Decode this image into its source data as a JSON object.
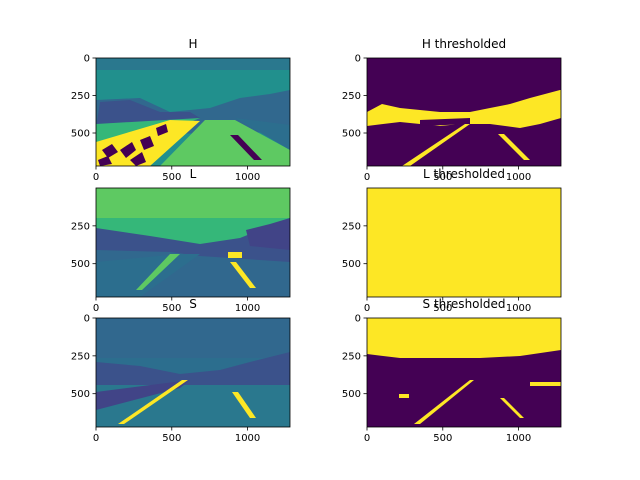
{
  "figure": {
    "colors": {
      "background": "#ffffff",
      "viridis_dark": "#440154",
      "viridis_blue": "#2c6e8e",
      "viridis_teal": "#21908d",
      "viridis_green": "#35b779",
      "viridis_light": "#5ec962",
      "viridis_yellow": "#fde725"
    }
  },
  "chart_data": [
    {
      "type": "heatmap",
      "title": "H",
      "xticks": [
        "0",
        "500",
        "1000"
      ],
      "yticks": [
        "0",
        "250",
        "500"
      ],
      "xlim": [
        0,
        1280
      ],
      "ylim": [
        720,
        0
      ],
      "image_content": "hue channel of road image"
    },
    {
      "type": "heatmap",
      "title": "H thresholded",
      "xticks": [
        "0",
        "500",
        "1000"
      ],
      "yticks": [
        "0",
        "250",
        "500"
      ],
      "xlim": [
        0,
        1280
      ],
      "ylim": [
        720,
        0
      ],
      "image_content": "binary threshold of hue channel"
    },
    {
      "type": "heatmap",
      "title": "L",
      "xticks": [
        "0",
        "500",
        "1000"
      ],
      "yticks": [
        "250",
        "500"
      ],
      "xlim": [
        0,
        1280
      ],
      "ylim": [
        720,
        0
      ],
      "image_content": "lightness channel of road image"
    },
    {
      "type": "heatmap",
      "title": "L thresholded",
      "xticks": [
        "0",
        "500",
        "1000"
      ],
      "yticks": [
        "250",
        "500"
      ],
      "xlim": [
        0,
        1280
      ],
      "ylim": [
        720,
        0
      ],
      "image_content": "binary threshold of lightness channel (all above threshold)"
    },
    {
      "type": "heatmap",
      "title": "S",
      "xticks": [
        "0",
        "500",
        "1000"
      ],
      "yticks": [
        "0",
        "250",
        "500"
      ],
      "xlim": [
        0,
        1280
      ],
      "ylim": [
        720,
        0
      ],
      "image_content": "saturation channel of road image"
    },
    {
      "type": "heatmap",
      "title": "S thresholded",
      "xticks": [
        "0",
        "500",
        "1000"
      ],
      "yticks": [
        "0",
        "250",
        "500"
      ],
      "xlim": [
        0,
        1280
      ],
      "ylim": [
        720,
        0
      ],
      "image_content": "binary threshold of saturation channel"
    }
  ]
}
